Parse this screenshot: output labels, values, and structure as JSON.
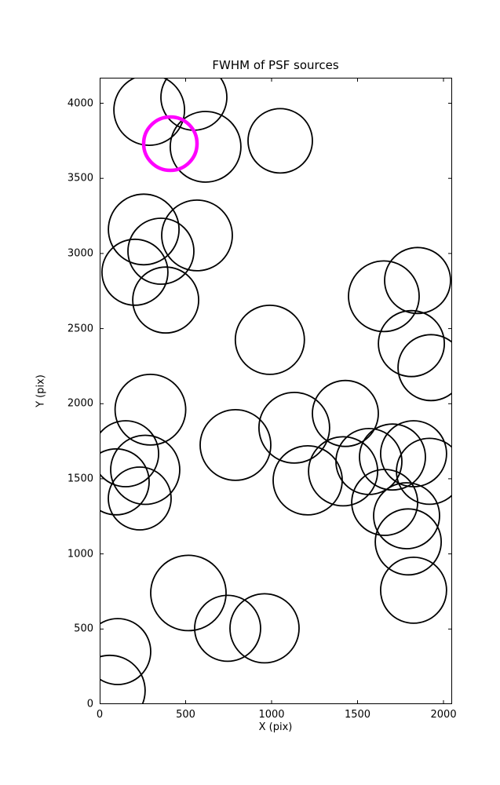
{
  "chart_data": {
    "type": "scatter",
    "title": "FWHM of PSF sources",
    "xlabel": "X (pix)",
    "ylabel": "Y (pix)",
    "xlim": [
      0,
      2050
    ],
    "ylim": [
      0,
      4170
    ],
    "xticks": [
      0,
      500,
      1000,
      1500,
      2000
    ],
    "yticks": [
      0,
      500,
      1000,
      1500,
      2000,
      2500,
      3000,
      3500,
      4000
    ],
    "grid": false,
    "legend_position": "none",
    "marker_style": "open-circle",
    "radius_unit": "screen-px",
    "colors": {
      "default": "#000000",
      "highlight": "#FF00FF"
    },
    "points": [
      {
        "x": 288,
        "y": 3955,
        "r": 45
      },
      {
        "x": 548,
        "y": 4040,
        "r": 42
      },
      {
        "x": 616,
        "y": 3710,
        "r": 45
      },
      {
        "x": 1050,
        "y": 3750,
        "r": 41
      },
      {
        "x": 411,
        "y": 3731,
        "r": 34,
        "c": "highlight",
        "lw": 4.5
      },
      {
        "x": 256,
        "y": 3160,
        "r": 45
      },
      {
        "x": 566,
        "y": 3120,
        "r": 45
      },
      {
        "x": 356,
        "y": 3015,
        "r": 42
      },
      {
        "x": 205,
        "y": 2875,
        "r": 42
      },
      {
        "x": 384,
        "y": 2690,
        "r": 42
      },
      {
        "x": 990,
        "y": 2425,
        "r": 44
      },
      {
        "x": 1653,
        "y": 2715,
        "r": 45
      },
      {
        "x": 1849,
        "y": 2820,
        "r": 42
      },
      {
        "x": 1813,
        "y": 2400,
        "r": 42
      },
      {
        "x": 1927,
        "y": 2240,
        "r": 42
      },
      {
        "x": 295,
        "y": 1960,
        "r": 45
      },
      {
        "x": 151,
        "y": 1667,
        "r": 42
      },
      {
        "x": 265,
        "y": 1560,
        "r": 44
      },
      {
        "x": 96,
        "y": 1480,
        "r": 42
      },
      {
        "x": 233,
        "y": 1369,
        "r": 40
      },
      {
        "x": 790,
        "y": 1725,
        "r": 45
      },
      {
        "x": 1132,
        "y": 1840,
        "r": 45
      },
      {
        "x": 1429,
        "y": 1935,
        "r": 42
      },
      {
        "x": 1210,
        "y": 1490,
        "r": 44
      },
      {
        "x": 1416,
        "y": 1550,
        "r": 44
      },
      {
        "x": 1566,
        "y": 1615,
        "r": 42
      },
      {
        "x": 1703,
        "y": 1645,
        "r": 42
      },
      {
        "x": 1826,
        "y": 1667,
        "r": 42
      },
      {
        "x": 1918,
        "y": 1550,
        "r": 42
      },
      {
        "x": 1658,
        "y": 1343,
        "r": 42
      },
      {
        "x": 1785,
        "y": 1254,
        "r": 42
      },
      {
        "x": 1795,
        "y": 1080,
        "r": 42
      },
      {
        "x": 1826,
        "y": 758,
        "r": 42
      },
      {
        "x": 516,
        "y": 740,
        "r": 48
      },
      {
        "x": 744,
        "y": 505,
        "r": 42
      },
      {
        "x": 959,
        "y": 505,
        "r": 44
      },
      {
        "x": 105,
        "y": 350,
        "r": 42
      },
      {
        "x": 59,
        "y": 90,
        "r": 45
      }
    ]
  }
}
